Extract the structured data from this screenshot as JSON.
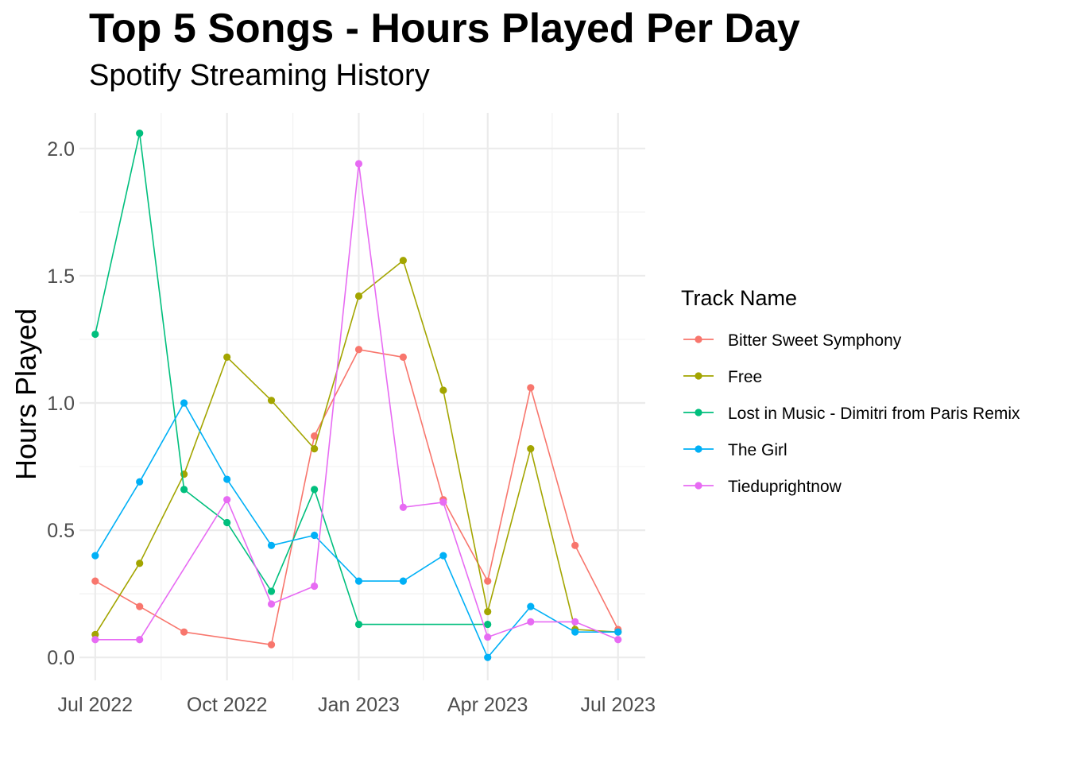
{
  "chart_data": {
    "type": "line",
    "title": "Top 5 Songs - Hours Played Per Day",
    "subtitle": "Spotify Streaming History",
    "xlabel": "",
    "ylabel": "Hours Played",
    "x_type": "date",
    "xlim": [
      "2022-06-20",
      "2023-07-20"
    ],
    "ylim": [
      -0.09,
      2.14
    ],
    "x_ticks": [
      {
        "date": "2022-07-01",
        "label": "Jul 2022"
      },
      {
        "date": "2022-10-01",
        "label": "Oct 2022"
      },
      {
        "date": "2023-01-01",
        "label": "Jan 2023"
      },
      {
        "date": "2023-04-01",
        "label": "Apr 2023"
      },
      {
        "date": "2023-07-01",
        "label": "Jul 2023"
      }
    ],
    "x_minor_ticks": [
      "2022-08-16",
      "2022-11-16",
      "2023-02-15",
      "2023-05-16"
    ],
    "y_ticks": [
      {
        "value": 0.0,
        "label": "0.0"
      },
      {
        "value": 0.5,
        "label": "0.5"
      },
      {
        "value": 1.0,
        "label": "1.0"
      },
      {
        "value": 1.5,
        "label": "1.5"
      },
      {
        "value": 2.0,
        "label": "2.0"
      }
    ],
    "y_minor_ticks": [
      0.25,
      0.75,
      1.25,
      1.75
    ],
    "grid": true,
    "legend": {
      "title": "Track Name",
      "position": "right"
    },
    "series": [
      {
        "name": "Bitter Sweet Symphony",
        "color": "#F8766D",
        "points": [
          [
            "2022-07-01",
            0.3
          ],
          [
            "2022-08-01",
            0.2
          ],
          [
            "2022-09-01",
            0.1
          ],
          [
            "2022-11-01",
            0.05
          ],
          [
            "2022-12-01",
            0.87
          ],
          [
            "2023-01-01",
            1.21
          ],
          [
            "2023-02-01",
            1.18
          ],
          [
            "2023-03-01",
            0.62
          ],
          [
            "2023-04-01",
            0.3
          ],
          [
            "2023-05-01",
            1.06
          ],
          [
            "2023-06-01",
            0.44
          ],
          [
            "2023-07-01",
            0.11
          ]
        ]
      },
      {
        "name": "Free",
        "color": "#A3A500",
        "points": [
          [
            "2022-07-01",
            0.09
          ],
          [
            "2022-08-01",
            0.37
          ],
          [
            "2022-09-01",
            0.72
          ],
          [
            "2022-10-01",
            1.18
          ],
          [
            "2022-11-01",
            1.01
          ],
          [
            "2022-12-01",
            0.82
          ],
          [
            "2023-01-01",
            1.42
          ],
          [
            "2023-02-01",
            1.56
          ],
          [
            "2023-03-01",
            1.05
          ],
          [
            "2023-04-01",
            0.18
          ],
          [
            "2023-05-01",
            0.82
          ],
          [
            "2023-06-01",
            0.11
          ],
          [
            "2023-07-01",
            0.1
          ]
        ]
      },
      {
        "name": "Lost in Music - Dimitri from Paris Remix",
        "color": "#00BF7D",
        "points": [
          [
            "2022-07-01",
            1.27
          ],
          [
            "2022-08-01",
            2.06
          ],
          [
            "2022-09-01",
            0.66
          ],
          [
            "2022-10-01",
            0.53
          ],
          [
            "2022-11-01",
            0.26
          ],
          [
            "2022-12-01",
            0.66
          ],
          [
            "2023-01-01",
            0.13
          ],
          [
            "2023-04-01",
            0.13
          ]
        ]
      },
      {
        "name": "The Girl",
        "color": "#00B0F6",
        "points": [
          [
            "2022-07-01",
            0.4
          ],
          [
            "2022-08-01",
            0.69
          ],
          [
            "2022-09-01",
            1.0
          ],
          [
            "2022-10-01",
            0.7
          ],
          [
            "2022-11-01",
            0.44
          ],
          [
            "2022-12-01",
            0.48
          ],
          [
            "2023-01-01",
            0.3
          ],
          [
            "2023-02-01",
            0.3
          ],
          [
            "2023-03-01",
            0.4
          ],
          [
            "2023-04-01",
            0.0
          ],
          [
            "2023-05-01",
            0.2
          ],
          [
            "2023-06-01",
            0.1
          ],
          [
            "2023-07-01",
            0.1
          ]
        ]
      },
      {
        "name": "Tieduprightnow",
        "color": "#E76BF3",
        "points": [
          [
            "2022-07-01",
            0.07
          ],
          [
            "2022-08-01",
            0.07
          ],
          [
            "2022-10-01",
            0.62
          ],
          [
            "2022-11-01",
            0.21
          ],
          [
            "2022-12-01",
            0.28
          ],
          [
            "2023-01-01",
            1.94
          ],
          [
            "2023-02-01",
            0.59
          ],
          [
            "2023-03-01",
            0.61
          ],
          [
            "2023-04-01",
            0.08
          ],
          [
            "2023-05-01",
            0.14
          ],
          [
            "2023-06-01",
            0.14
          ],
          [
            "2023-07-01",
            0.07
          ]
        ]
      }
    ]
  }
}
